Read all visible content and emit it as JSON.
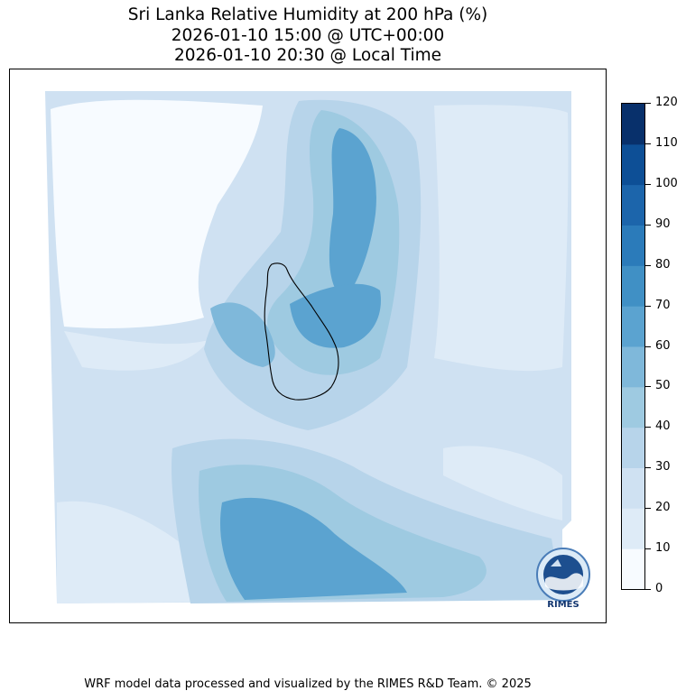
{
  "title": {
    "line1": "Sri Lanka Relative Humidity at 200 hPa (%)",
    "line2": "2026-01-10 15:00 @ UTC+00:00",
    "line3": "2026-01-10 20:30 @ Local Time"
  },
  "colorbar": {
    "ticks": [
      "120",
      "110",
      "100",
      "90",
      "80",
      "70",
      "60",
      "50",
      "40",
      "30",
      "20",
      "10",
      "0"
    ],
    "colors": [
      "#f7fbff",
      "#deebf7",
      "#cfe1f2",
      "#b7d4ea",
      "#9ecae1",
      "#7fb8da",
      "#5ba3d0",
      "#4090c5",
      "#2b7bba",
      "#1c65ab",
      "#0d4f96",
      "#08306b"
    ]
  },
  "logo": {
    "name": "rimes-logo",
    "text": "RIMES"
  },
  "footer": "WRF model data processed and visualized by the RIMES R&D Team. © 2025"
}
